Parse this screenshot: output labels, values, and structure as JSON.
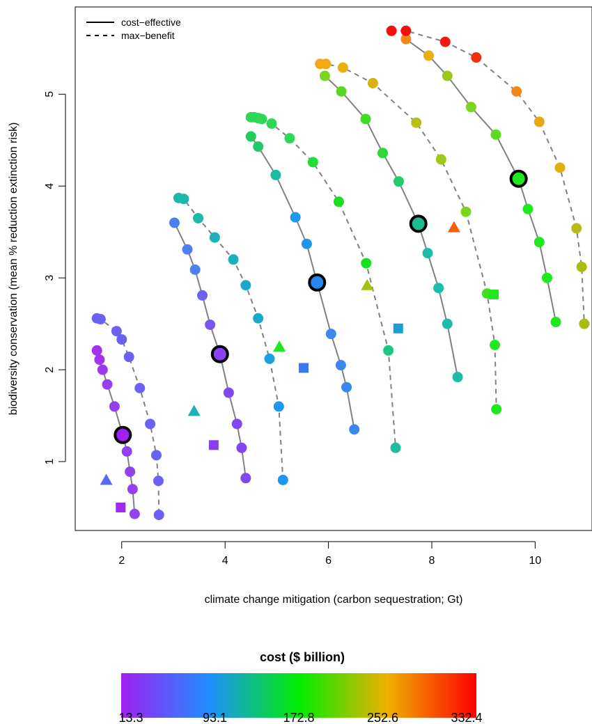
{
  "chart_data": {
    "type": "scatter",
    "xlabel": "climate change mitigation (carbon sequestration; Gt)",
    "ylabel": "biodiversity conservation (mean % reduction extinction risk)",
    "xlim": [
      1.1,
      11.1
    ],
    "ylim": [
      0.25,
      5.95
    ],
    "x_ticks": [
      2,
      4,
      6,
      8,
      10
    ],
    "y_ticks": [
      1,
      2,
      3,
      4,
      5
    ],
    "grid": false,
    "legend": {
      "placement": "top-left",
      "entries": [
        {
          "label": "cost−effective",
          "line": "solid"
        },
        {
          "label": "max−benefit",
          "line": "dashed"
        }
      ]
    },
    "colorbar": {
      "title": "cost ($ billion)",
      "tick_labels": [
        "13.3",
        "93.1",
        "172.8",
        "252.6",
        "332.4"
      ],
      "min": 13.3,
      "max": 332.4,
      "colors": [
        "#a020f0",
        "#1e90ff",
        "#00ee00",
        "#eeb000",
        "#ff0000"
      ]
    },
    "series": [
      {
        "line": "solid",
        "color": "#8a42f5",
        "points": [
          [
            1.52,
            2.21
          ],
          [
            1.57,
            2.11
          ],
          [
            1.63,
            2.0
          ],
          [
            1.72,
            1.84
          ],
          [
            1.86,
            1.6
          ],
          [
            2.02,
            1.29
          ],
          [
            2.1,
            1.11
          ],
          [
            2.16,
            0.89
          ],
          [
            2.21,
            0.7
          ],
          [
            2.25,
            0.43
          ]
        ]
      },
      {
        "line": "dashed",
        "color": "#6e62f0",
        "points": [
          [
            1.52,
            2.56
          ],
          [
            1.59,
            2.55
          ],
          [
            1.9,
            2.42
          ],
          [
            2.0,
            2.33
          ],
          [
            2.14,
            2.14
          ],
          [
            2.35,
            1.8
          ],
          [
            2.55,
            1.41
          ],
          [
            2.67,
            1.07
          ],
          [
            2.71,
            0.79
          ],
          [
            2.72,
            0.42
          ]
        ]
      },
      {
        "line": "solid",
        "color": "#5a78f0",
        "points": [
          [
            3.02,
            3.6
          ],
          [
            3.27,
            3.31
          ],
          [
            3.42,
            3.09
          ],
          [
            3.56,
            2.81
          ],
          [
            3.71,
            2.49
          ],
          [
            3.9,
            2.17
          ],
          [
            4.07,
            1.75
          ],
          [
            4.23,
            1.41
          ],
          [
            4.32,
            1.15
          ],
          [
            4.4,
            0.82
          ]
        ]
      },
      {
        "line": "dashed",
        "color": "#1eaad8",
        "points": [
          [
            3.1,
            3.87
          ],
          [
            3.2,
            3.86
          ],
          [
            3.48,
            3.65
          ],
          [
            3.8,
            3.44
          ],
          [
            4.16,
            3.2
          ],
          [
            4.4,
            2.92
          ],
          [
            4.64,
            2.56
          ],
          [
            4.86,
            2.12
          ],
          [
            5.04,
            1.6
          ],
          [
            5.12,
            0.8
          ]
        ]
      },
      {
        "line": "solid",
        "color": "#3a8ef0",
        "points": [
          [
            4.5,
            4.54
          ],
          [
            4.64,
            4.43
          ],
          [
            4.98,
            4.12
          ],
          [
            5.36,
            3.66
          ],
          [
            5.58,
            3.37
          ],
          [
            5.78,
            2.95
          ],
          [
            6.05,
            2.39
          ],
          [
            6.24,
            2.05
          ],
          [
            6.35,
            1.81
          ],
          [
            6.5,
            1.35
          ]
        ]
      },
      {
        "line": "dashed",
        "color": "#33e066",
        "points": [
          [
            4.5,
            4.75
          ],
          [
            4.56,
            4.75
          ],
          [
            4.64,
            4.74
          ],
          [
            4.71,
            4.73
          ],
          [
            4.9,
            4.68
          ],
          [
            5.25,
            4.52
          ],
          [
            5.7,
            4.26
          ],
          [
            6.2,
            3.83
          ],
          [
            6.73,
            3.16
          ],
          [
            7.16,
            2.21
          ],
          [
            7.3,
            1.15
          ]
        ]
      },
      {
        "line": "solid",
        "color": "#22d088",
        "points": [
          [
            5.93,
            5.2
          ],
          [
            6.25,
            5.03
          ],
          [
            6.72,
            4.73
          ],
          [
            7.05,
            4.36
          ],
          [
            7.36,
            4.05
          ],
          [
            7.74,
            3.59
          ],
          [
            7.92,
            3.27
          ],
          [
            8.13,
            2.89
          ],
          [
            8.3,
            2.5
          ],
          [
            8.5,
            1.92
          ]
        ]
      },
      {
        "line": "dashed",
        "color": "#8ad82a",
        "points": [
          [
            5.84,
            5.33
          ],
          [
            5.95,
            5.33
          ],
          [
            6.28,
            5.29
          ],
          [
            6.86,
            5.12
          ],
          [
            7.7,
            4.69
          ],
          [
            8.18,
            4.29
          ],
          [
            8.66,
            3.72
          ],
          [
            9.07,
            2.83
          ],
          [
            9.22,
            2.27
          ],
          [
            9.25,
            1.57
          ]
        ]
      },
      {
        "line": "solid",
        "color": "#6ed84a",
        "points": [
          [
            7.5,
            5.6
          ],
          [
            7.94,
            5.42
          ],
          [
            8.3,
            5.2
          ],
          [
            8.76,
            4.86
          ],
          [
            9.24,
            4.56
          ],
          [
            9.68,
            4.08
          ],
          [
            9.86,
            3.75
          ],
          [
            10.08,
            3.39
          ],
          [
            10.23,
            3.0
          ],
          [
            10.4,
            2.52
          ]
        ]
      },
      {
        "line": "dashed",
        "color": "#e88a2a",
        "points": [
          [
            7.22,
            5.69
          ],
          [
            7.5,
            5.69
          ],
          [
            8.26,
            5.57
          ],
          [
            8.86,
            5.4
          ],
          [
            9.64,
            5.03
          ],
          [
            10.08,
            4.7
          ],
          [
            10.48,
            4.2
          ],
          [
            10.8,
            3.54
          ],
          [
            10.9,
            3.12
          ],
          [
            10.95,
            2.5
          ]
        ]
      }
    ],
    "points": [
      {
        "x": 1.52,
        "y": 2.21,
        "color": "#a432ee"
      },
      {
        "x": 1.57,
        "y": 2.11,
        "color": "#a432ee"
      },
      {
        "x": 1.63,
        "y": 2.0,
        "color": "#9d38ef"
      },
      {
        "x": 1.72,
        "y": 1.84,
        "color": "#9a3cef"
      },
      {
        "x": 1.86,
        "y": 1.6,
        "color": "#983eef"
      },
      {
        "x": 2.1,
        "y": 1.11,
        "color": "#9540f0"
      },
      {
        "x": 2.16,
        "y": 0.89,
        "color": "#9342f0"
      },
      {
        "x": 2.21,
        "y": 0.7,
        "color": "#9143f0"
      },
      {
        "x": 2.25,
        "y": 0.43,
        "color": "#8f45f0"
      },
      {
        "x": 1.52,
        "y": 2.56,
        "color": "#6a62f2"
      },
      {
        "x": 1.59,
        "y": 2.55,
        "color": "#6a62f2"
      },
      {
        "x": 1.9,
        "y": 2.42,
        "color": "#6a62f2"
      },
      {
        "x": 2.0,
        "y": 2.33,
        "color": "#6a62f2"
      },
      {
        "x": 2.14,
        "y": 2.14,
        "color": "#6a62f2"
      },
      {
        "x": 2.35,
        "y": 1.8,
        "color": "#6a62f2"
      },
      {
        "x": 2.55,
        "y": 1.41,
        "color": "#6a62f2"
      },
      {
        "x": 2.67,
        "y": 1.07,
        "color": "#6a62f2"
      },
      {
        "x": 2.71,
        "y": 0.79,
        "color": "#6a62f2"
      },
      {
        "x": 2.72,
        "y": 0.42,
        "color": "#6a62f2"
      },
      {
        "x": 3.02,
        "y": 3.6,
        "color": "#4d80f2"
      },
      {
        "x": 3.27,
        "y": 3.31,
        "color": "#4d80f2"
      },
      {
        "x": 3.42,
        "y": 3.09,
        "color": "#4d80f2"
      },
      {
        "x": 3.56,
        "y": 2.81,
        "color": "#6a62f2"
      },
      {
        "x": 3.71,
        "y": 2.49,
        "color": "#7a55f2"
      },
      {
        "x": 4.07,
        "y": 1.75,
        "color": "#8248f0"
      },
      {
        "x": 4.23,
        "y": 1.41,
        "color": "#8248f0"
      },
      {
        "x": 4.32,
        "y": 1.15,
        "color": "#8248f0"
      },
      {
        "x": 4.4,
        "y": 0.82,
        "color": "#8248f0"
      },
      {
        "x": 3.1,
        "y": 3.87,
        "color": "#1cb8a8"
      },
      {
        "x": 3.2,
        "y": 3.86,
        "color": "#1cb8a8"
      },
      {
        "x": 3.48,
        "y": 3.65,
        "color": "#1cb8a8"
      },
      {
        "x": 3.8,
        "y": 3.44,
        "color": "#1cb0b8"
      },
      {
        "x": 4.16,
        "y": 3.2,
        "color": "#1cb0b8"
      },
      {
        "x": 4.4,
        "y": 2.92,
        "color": "#1ca8c8"
      },
      {
        "x": 4.64,
        "y": 2.56,
        "color": "#1ca8c8"
      },
      {
        "x": 4.86,
        "y": 2.12,
        "color": "#1ea0e0"
      },
      {
        "x": 5.04,
        "y": 1.6,
        "color": "#1e98ee"
      },
      {
        "x": 5.12,
        "y": 0.8,
        "color": "#1e96f0"
      },
      {
        "x": 4.5,
        "y": 4.54,
        "color": "#20cc5a"
      },
      {
        "x": 4.64,
        "y": 4.43,
        "color": "#20c86a"
      },
      {
        "x": 4.98,
        "y": 4.12,
        "color": "#1cbca0"
      },
      {
        "x": 5.36,
        "y": 3.66,
        "color": "#1e98ee"
      },
      {
        "x": 5.58,
        "y": 3.37,
        "color": "#1e96f0"
      },
      {
        "x": 6.05,
        "y": 2.39,
        "color": "#3a88f0"
      },
      {
        "x": 6.24,
        "y": 2.05,
        "color": "#3a88f0"
      },
      {
        "x": 6.35,
        "y": 1.81,
        "color": "#3a88f0"
      },
      {
        "x": 6.5,
        "y": 1.35,
        "color": "#3a88f0"
      },
      {
        "x": 4.5,
        "y": 4.75,
        "color": "#2ed856"
      },
      {
        "x": 4.56,
        "y": 4.75,
        "color": "#2ed856"
      },
      {
        "x": 4.64,
        "y": 4.74,
        "color": "#2ed856"
      },
      {
        "x": 4.71,
        "y": 4.73,
        "color": "#2ed856"
      },
      {
        "x": 4.9,
        "y": 4.68,
        "color": "#2ed856"
      },
      {
        "x": 5.25,
        "y": 4.52,
        "color": "#2ed856"
      },
      {
        "x": 5.7,
        "y": 4.26,
        "color": "#22dc38"
      },
      {
        "x": 6.2,
        "y": 3.83,
        "color": "#18e01c"
      },
      {
        "x": 6.73,
        "y": 3.16,
        "color": "#18e01c"
      },
      {
        "x": 7.16,
        "y": 2.21,
        "color": "#1cc880"
      },
      {
        "x": 7.3,
        "y": 1.15,
        "color": "#22bc9c"
      },
      {
        "x": 5.93,
        "y": 5.2,
        "color": "#7cd41c"
      },
      {
        "x": 6.25,
        "y": 5.03,
        "color": "#58d820"
      },
      {
        "x": 6.72,
        "y": 4.73,
        "color": "#40dc20"
      },
      {
        "x": 7.05,
        "y": 4.36,
        "color": "#2ad83a"
      },
      {
        "x": 7.36,
        "y": 4.05,
        "color": "#20cc6a"
      },
      {
        "x": 7.92,
        "y": 3.27,
        "color": "#1cbca8"
      },
      {
        "x": 8.13,
        "y": 2.89,
        "color": "#1cbca8"
      },
      {
        "x": 8.3,
        "y": 2.5,
        "color": "#1cbca8"
      },
      {
        "x": 8.5,
        "y": 1.92,
        "color": "#1cbca8"
      },
      {
        "x": 5.84,
        "y": 5.33,
        "color": "#f2a818"
      },
      {
        "x": 5.95,
        "y": 5.33,
        "color": "#f2a818"
      },
      {
        "x": 6.28,
        "y": 5.29,
        "color": "#e8b010"
      },
      {
        "x": 6.86,
        "y": 5.12,
        "color": "#d8b010"
      },
      {
        "x": 7.7,
        "y": 4.69,
        "color": "#b8c014"
      },
      {
        "x": 8.18,
        "y": 4.29,
        "color": "#a0c818"
      },
      {
        "x": 8.66,
        "y": 3.72,
        "color": "#7cd41c"
      },
      {
        "x": 9.07,
        "y": 2.83,
        "color": "#40e020"
      },
      {
        "x": 9.22,
        "y": 2.27,
        "color": "#1ee81e"
      },
      {
        "x": 9.25,
        "y": 1.57,
        "color": "#1ee81e"
      },
      {
        "x": 7.5,
        "y": 5.6,
        "color": "#f28818"
      },
      {
        "x": 7.94,
        "y": 5.42,
        "color": "#e8b010"
      },
      {
        "x": 8.3,
        "y": 5.2,
        "color": "#9cc818"
      },
      {
        "x": 8.76,
        "y": 4.86,
        "color": "#7cd41c"
      },
      {
        "x": 9.24,
        "y": 4.56,
        "color": "#58dc1c"
      },
      {
        "x": 9.86,
        "y": 3.75,
        "color": "#1ee81e"
      },
      {
        "x": 10.08,
        "y": 3.39,
        "color": "#1ee81e"
      },
      {
        "x": 10.23,
        "y": 3.0,
        "color": "#1ee81e"
      },
      {
        "x": 10.4,
        "y": 2.52,
        "color": "#1ee81e"
      },
      {
        "x": 7.22,
        "y": 5.69,
        "color": "#f21010"
      },
      {
        "x": 7.5,
        "y": 5.69,
        "color": "#f21010"
      },
      {
        "x": 8.26,
        "y": 5.57,
        "color": "#f21818"
      },
      {
        "x": 8.86,
        "y": 5.4,
        "color": "#f23010"
      },
      {
        "x": 9.64,
        "y": 5.03,
        "color": "#f28818"
      },
      {
        "x": 10.08,
        "y": 4.7,
        "color": "#eaa810"
      },
      {
        "x": 10.48,
        "y": 4.2,
        "color": "#e0b010"
      },
      {
        "x": 10.8,
        "y": 3.54,
        "color": "#b8bc14"
      },
      {
        "x": 10.9,
        "y": 3.12,
        "color": "#a8bc14"
      },
      {
        "x": 10.95,
        "y": 2.5,
        "color": "#a8bc14"
      }
    ],
    "highlighted_points": [
      {
        "x": 2.02,
        "y": 1.29,
        "color": "#a020f0"
      },
      {
        "x": 3.9,
        "y": 2.17,
        "color": "#8a42f5"
      },
      {
        "x": 5.78,
        "y": 2.95,
        "color": "#2488f0"
      },
      {
        "x": 7.74,
        "y": 3.59,
        "color": "#1cbc8c"
      },
      {
        "x": 9.68,
        "y": 4.08,
        "color": "#1ee81e"
      }
    ],
    "triangles": [
      {
        "x": 1.7,
        "y": 0.8,
        "color": "#5a6af0"
      },
      {
        "x": 3.4,
        "y": 1.55,
        "color": "#1cb0b8"
      },
      {
        "x": 5.05,
        "y": 2.25,
        "color": "#1ee81e"
      },
      {
        "x": 6.75,
        "y": 2.92,
        "color": "#a8c014"
      },
      {
        "x": 8.43,
        "y": 3.55,
        "color": "#f26010"
      }
    ],
    "squares": [
      {
        "x": 1.98,
        "y": 0.5,
        "color": "#a028f0"
      },
      {
        "x": 3.78,
        "y": 1.18,
        "color": "#8440f0"
      },
      {
        "x": 5.52,
        "y": 2.02,
        "color": "#3a78f0"
      },
      {
        "x": 7.35,
        "y": 2.45,
        "color": "#1aa0d0"
      },
      {
        "x": 9.2,
        "y": 2.82,
        "color": "#1ee81e"
      }
    ]
  }
}
